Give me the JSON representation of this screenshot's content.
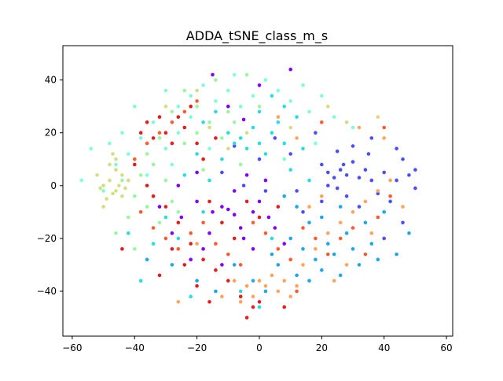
{
  "chart_data": {
    "type": "scatter",
    "title": "ADDA_tSNE_class_m_s",
    "xlabel": "",
    "ylabel": "",
    "xlim": [
      -63,
      62
    ],
    "ylim": [
      -57,
      53
    ],
    "xticks": [
      -60,
      -40,
      -20,
      0,
      20,
      40,
      60
    ],
    "yticks": [
      -40,
      -20,
      0,
      20,
      40
    ],
    "xtick_labels": [
      "−60",
      "−40",
      "−20",
      "0",
      "20",
      "40",
      "60"
    ],
    "ytick_labels": [
      "−40",
      "−20",
      "0",
      "20",
      "40"
    ],
    "grid": false,
    "legend": "none",
    "classes": [
      {
        "color": "#7f00ff",
        "points": [
          [
            -32,
            -8
          ],
          [
            -28,
            -18
          ],
          [
            -25,
            -12
          ],
          [
            -20,
            5
          ],
          [
            -18,
            -24
          ],
          [
            -15,
            -10
          ],
          [
            -12,
            -8
          ],
          [
            -10,
            -9
          ],
          [
            -8,
            -11
          ],
          [
            -6,
            -16
          ],
          [
            -5,
            -20
          ],
          [
            -2,
            -10
          ],
          [
            0,
            -6
          ],
          [
            3,
            -12
          ],
          [
            5,
            -16
          ],
          [
            -10,
            30
          ],
          [
            -5,
            25
          ],
          [
            0,
            38
          ],
          [
            -15,
            42
          ],
          [
            10,
            44
          ],
          [
            -22,
            -28
          ],
          [
            -12,
            -30
          ],
          [
            -8,
            -2
          ],
          [
            -4,
            4
          ],
          [
            2,
            2
          ],
          [
            -16,
            -18
          ],
          [
            -2,
            -24
          ],
          [
            8,
            -22
          ],
          [
            -20,
            -6
          ],
          [
            -26,
            0
          ]
        ]
      },
      {
        "color": "#4b4dff",
        "points": [
          [
            20,
            8
          ],
          [
            22,
            5
          ],
          [
            24,
            3
          ],
          [
            25,
            -1
          ],
          [
            26,
            6
          ],
          [
            27,
            8
          ],
          [
            28,
            4
          ],
          [
            30,
            9
          ],
          [
            32,
            3
          ],
          [
            34,
            6
          ],
          [
            36,
            2
          ],
          [
            38,
            -3
          ],
          [
            40,
            5
          ],
          [
            42,
            -6
          ],
          [
            44,
            2
          ],
          [
            46,
            10
          ],
          [
            48,
            4
          ],
          [
            50,
            -1
          ],
          [
            25,
            13
          ],
          [
            30,
            15
          ],
          [
            35,
            12
          ],
          [
            22,
            0
          ],
          [
            28,
            -4
          ],
          [
            32,
            -8
          ],
          [
            20,
            -6
          ],
          [
            14,
            -10
          ],
          [
            10,
            12
          ],
          [
            5,
            18
          ],
          [
            0,
            10
          ],
          [
            -5,
            0
          ],
          [
            -12,
            5
          ],
          [
            40,
            -20
          ],
          [
            46,
            -14
          ],
          [
            18,
            20
          ],
          [
            12,
            -2
          ],
          [
            36,
            18
          ],
          [
            44,
            14
          ],
          [
            50,
            6
          ],
          [
            -8,
            15
          ],
          [
            2,
            -2
          ]
        ]
      },
      {
        "color": "#1ea8e8",
        "points": [
          [
            10,
            -20
          ],
          [
            14,
            -24
          ],
          [
            18,
            -28
          ],
          [
            20,
            -32
          ],
          [
            22,
            -22
          ],
          [
            24,
            -26
          ],
          [
            26,
            -34
          ],
          [
            28,
            -18
          ],
          [
            30,
            -24
          ],
          [
            32,
            -30
          ],
          [
            34,
            -14
          ],
          [
            36,
            -22
          ],
          [
            38,
            -28
          ],
          [
            16,
            -14
          ],
          [
            12,
            -8
          ],
          [
            8,
            -4
          ],
          [
            6,
            -30
          ],
          [
            2,
            -40
          ],
          [
            -2,
            -36
          ],
          [
            20,
            -12
          ],
          [
            26,
            -8
          ],
          [
            16,
            -36
          ],
          [
            40,
            -10
          ],
          [
            44,
            -26
          ],
          [
            48,
            -18
          ],
          [
            -20,
            -36
          ],
          [
            -14,
            -40
          ],
          [
            -28,
            -30
          ],
          [
            -36,
            -28
          ],
          [
            -8,
            -30
          ],
          [
            4,
            -26
          ],
          [
            12,
            -34
          ]
        ]
      },
      {
        "color": "#2adddd",
        "points": [
          [
            -10,
            20
          ],
          [
            -8,
            16
          ],
          [
            -6,
            18
          ],
          [
            -4,
            14
          ],
          [
            -2,
            22
          ],
          [
            0,
            16
          ],
          [
            2,
            12
          ],
          [
            4,
            20
          ],
          [
            6,
            24
          ],
          [
            8,
            16
          ],
          [
            -12,
            10
          ],
          [
            -16,
            2
          ],
          [
            -20,
            12
          ],
          [
            -24,
            4
          ],
          [
            -18,
            24
          ],
          [
            -14,
            28
          ],
          [
            0,
            28
          ],
          [
            4,
            34
          ],
          [
            8,
            30
          ],
          [
            12,
            26
          ],
          [
            -30,
            -12
          ],
          [
            -34,
            -22
          ],
          [
            -38,
            -36
          ],
          [
            -42,
            -18
          ],
          [
            -26,
            -20
          ],
          [
            -6,
            -40
          ],
          [
            0,
            -46
          ],
          [
            -18,
            -10
          ],
          [
            10,
            6
          ],
          [
            14,
            14
          ],
          [
            -22,
            -42
          ],
          [
            4,
            -20
          ],
          [
            16,
            2
          ]
        ]
      },
      {
        "color": "#7fffd4",
        "points": [
          [
            -30,
            36
          ],
          [
            -26,
            30
          ],
          [
            -22,
            34
          ],
          [
            -18,
            38
          ],
          [
            -14,
            32
          ],
          [
            -10,
            36
          ],
          [
            -6,
            30
          ],
          [
            -2,
            34
          ],
          [
            2,
            40
          ],
          [
            6,
            36
          ],
          [
            10,
            32
          ],
          [
            14,
            38
          ],
          [
            -34,
            24
          ],
          [
            -38,
            18
          ],
          [
            -42,
            12
          ],
          [
            -46,
            8
          ],
          [
            -48,
            16
          ],
          [
            -44,
            20
          ],
          [
            -30,
            14
          ],
          [
            -26,
            20
          ],
          [
            -22,
            26
          ],
          [
            -50,
            -2
          ],
          [
            -54,
            14
          ],
          [
            -57,
            2
          ],
          [
            -40,
            30
          ],
          [
            16,
            28
          ],
          [
            20,
            34
          ],
          [
            24,
            26
          ],
          [
            30,
            22
          ],
          [
            -8,
            42
          ],
          [
            -28,
            8
          ],
          [
            -36,
            4
          ],
          [
            8,
            10
          ],
          [
            -16,
            14
          ],
          [
            18,
            16
          ]
        ]
      },
      {
        "color": "#99f7a0",
        "points": [
          [
            -40,
            -4
          ],
          [
            -36,
            -8
          ],
          [
            -32,
            -14
          ],
          [
            -28,
            -6
          ],
          [
            -38,
            4
          ],
          [
            -34,
            8
          ],
          [
            -30,
            2
          ],
          [
            -26,
            -10
          ],
          [
            -42,
            -12
          ],
          [
            -46,
            -18
          ],
          [
            -24,
            16
          ],
          [
            -20,
            20
          ],
          [
            -16,
            24
          ],
          [
            -12,
            18
          ],
          [
            -8,
            24
          ],
          [
            -28,
            28
          ],
          [
            -24,
            36
          ],
          [
            -14,
            40
          ],
          [
            -4,
            42
          ],
          [
            0,
            30
          ],
          [
            -36,
            12
          ],
          [
            -18,
            6
          ],
          [
            -44,
            2
          ],
          [
            -32,
            18
          ],
          [
            -20,
            30
          ],
          [
            -10,
            28
          ],
          [
            -6,
            8
          ],
          [
            -40,
            -24
          ]
        ]
      },
      {
        "color": "#d4dd80",
        "points": [
          [
            -50,
            0
          ],
          [
            -48,
            2
          ],
          [
            -46,
            -2
          ],
          [
            -44,
            4
          ],
          [
            -45,
            0
          ],
          [
            -47,
            -3
          ],
          [
            -49,
            -5
          ],
          [
            -43,
            -1
          ],
          [
            -46,
            6
          ],
          [
            -51,
            -1
          ],
          [
            -44,
            -4
          ],
          [
            -48,
            8
          ],
          [
            -52,
            4
          ],
          [
            -42,
            2
          ],
          [
            -46,
            10
          ],
          [
            -50,
            -8
          ],
          [
            -47,
            12
          ],
          [
            -20,
            36
          ],
          [
            -16,
            22
          ],
          [
            -10,
            14
          ],
          [
            22,
            30
          ],
          [
            28,
            24
          ],
          [
            38,
            26
          ],
          [
            -30,
            30
          ],
          [
            -4,
            20
          ],
          [
            10,
            22
          ]
        ]
      },
      {
        "color": "#fda55c",
        "points": [
          [
            0,
            -36
          ],
          [
            2,
            -38
          ],
          [
            4,
            -34
          ],
          [
            6,
            -40
          ],
          [
            8,
            -36
          ],
          [
            10,
            -42
          ],
          [
            12,
            -38
          ],
          [
            -2,
            -42
          ],
          [
            -4,
            -38
          ],
          [
            -6,
            -44
          ],
          [
            -8,
            -36
          ],
          [
            14,
            -30
          ],
          [
            18,
            -24
          ],
          [
            22,
            -18
          ],
          [
            26,
            -14
          ],
          [
            30,
            -10
          ],
          [
            34,
            -6
          ],
          [
            38,
            -2
          ],
          [
            42,
            2
          ],
          [
            46,
            -8
          ],
          [
            20,
            -4
          ],
          [
            16,
            -8
          ],
          [
            28,
            -30
          ],
          [
            24,
            -36
          ],
          [
            -12,
            -42
          ],
          [
            36,
            -18
          ],
          [
            32,
            22
          ],
          [
            40,
            18
          ],
          [
            12,
            18
          ],
          [
            6,
            26
          ],
          [
            -26,
            -44
          ],
          [
            -20,
            -22
          ]
        ]
      },
      {
        "color": "#ff5b2e",
        "points": [
          [
            -40,
            10
          ],
          [
            -36,
            16
          ],
          [
            -32,
            20
          ],
          [
            -28,
            24
          ],
          [
            -24,
            28
          ],
          [
            -20,
            32
          ],
          [
            -38,
            -10
          ],
          [
            -34,
            -16
          ],
          [
            -30,
            -20
          ],
          [
            -26,
            -24
          ],
          [
            -22,
            -18
          ],
          [
            -18,
            -14
          ],
          [
            -14,
            -22
          ],
          [
            -10,
            -26
          ],
          [
            -6,
            -30
          ],
          [
            -2,
            -14
          ],
          [
            2,
            -18
          ],
          [
            6,
            -24
          ],
          [
            10,
            -28
          ],
          [
            14,
            -16
          ],
          [
            18,
            -20
          ],
          [
            22,
            -26
          ],
          [
            26,
            -20
          ],
          [
            30,
            -16
          ],
          [
            34,
            -26
          ],
          [
            38,
            -12
          ],
          [
            42,
            -4
          ],
          [
            40,
            22
          ],
          [
            20,
            24
          ],
          [
            12,
            -40
          ]
        ]
      },
      {
        "color": "#e51c1c",
        "points": [
          [
            -36,
            24
          ],
          [
            -34,
            18
          ],
          [
            -32,
            26
          ],
          [
            -30,
            20
          ],
          [
            -28,
            16
          ],
          [
            -26,
            26
          ],
          [
            -24,
            22
          ],
          [
            -22,
            30
          ],
          [
            -20,
            16
          ],
          [
            -38,
            20
          ],
          [
            -40,
            8
          ],
          [
            -36,
            0
          ],
          [
            -34,
            -4
          ],
          [
            -30,
            -8
          ],
          [
            -26,
            -14
          ],
          [
            -22,
            -22
          ],
          [
            -18,
            -28
          ],
          [
            -14,
            -32
          ],
          [
            -10,
            -36
          ],
          [
            -6,
            -42
          ],
          [
            -2,
            -46
          ],
          [
            -4,
            -50
          ],
          [
            0,
            -44
          ],
          [
            -24,
            -30
          ],
          [
            -28,
            -24
          ],
          [
            -32,
            -34
          ],
          [
            -20,
            -38
          ],
          [
            -16,
            -44
          ],
          [
            -44,
            -24
          ],
          [
            -12,
            -14
          ],
          [
            -8,
            -20
          ],
          [
            -16,
            -6
          ],
          [
            -4,
            -6
          ],
          [
            0,
            -12
          ],
          [
            6,
            -8
          ],
          [
            8,
            -46
          ],
          [
            -18,
            10
          ],
          [
            -14,
            18
          ]
        ]
      }
    ]
  }
}
